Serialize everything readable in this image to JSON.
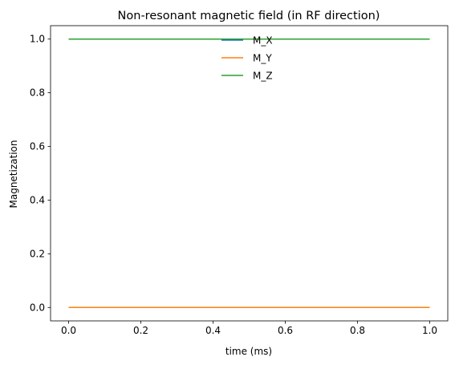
{
  "chart_data": {
    "type": "line",
    "title": "Non-resonant magnetic field (in RF direction)",
    "xlabel": "time (ms)",
    "ylabel": "Magnetization",
    "xlim": [
      -0.05,
      1.05
    ],
    "ylim": [
      -0.05,
      1.05
    ],
    "x_ticks": [
      0.0,
      0.2,
      0.4,
      0.6,
      0.8,
      1.0
    ],
    "x_tick_labels": [
      "0.0",
      "0.2",
      "0.4",
      "0.6",
      "0.8",
      "1.0"
    ],
    "y_ticks": [
      0.0,
      0.2,
      0.4,
      0.6,
      0.8,
      1.0
    ],
    "y_tick_labels": [
      "0.0",
      "0.2",
      "0.4",
      "0.6",
      "0.8",
      "1.0"
    ],
    "grid": false,
    "legend_position": "top-center",
    "x": [
      0.0,
      1.0
    ],
    "series": [
      {
        "name": "M_X",
        "color": "#1f77b4",
        "values": [
          0.0,
          0.0
        ]
      },
      {
        "name": "M_Y",
        "color": "#ff7f0e",
        "values": [
          0.0,
          0.0
        ]
      },
      {
        "name": "M_Z",
        "color": "#2ca02c",
        "values": [
          1.0,
          1.0
        ]
      }
    ]
  }
}
